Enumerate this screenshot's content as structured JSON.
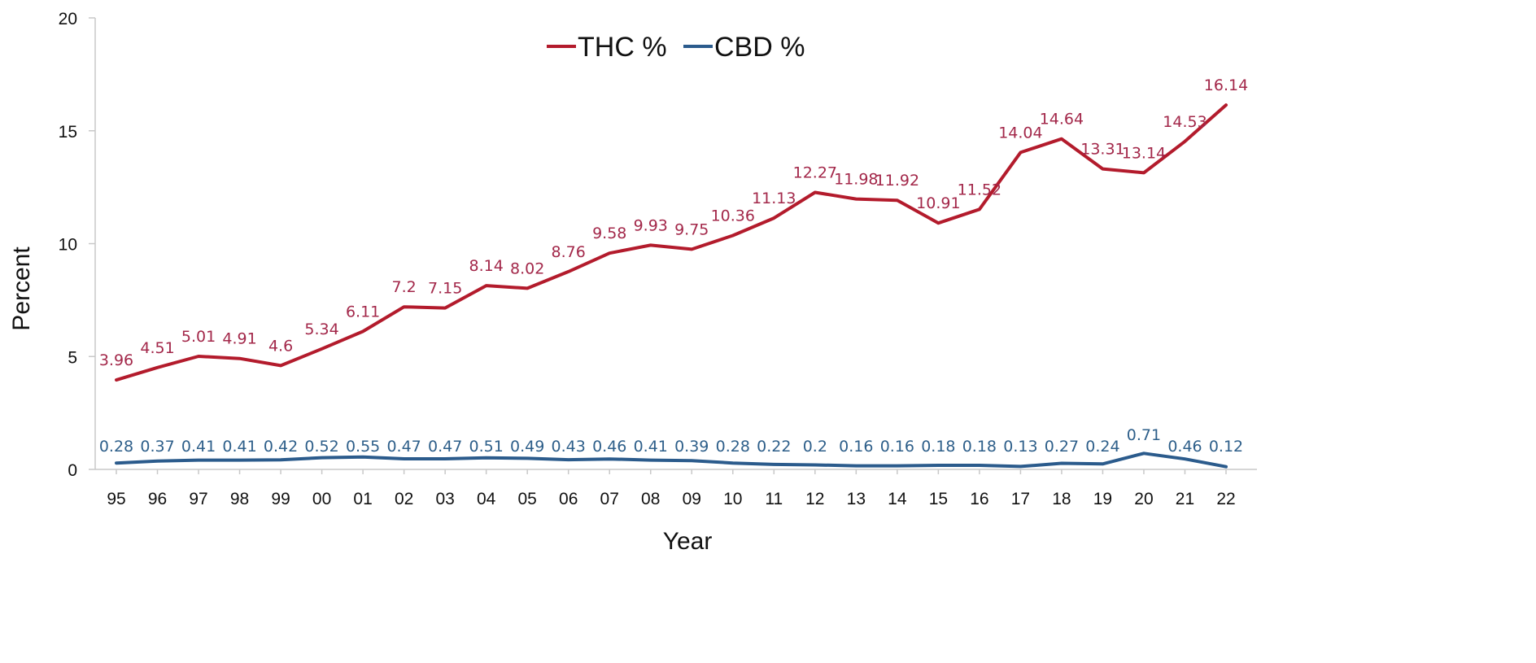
{
  "chart_data": {
    "type": "line",
    "xlabel": "Year",
    "ylabel": "Percent",
    "ylim": [
      0,
      20
    ],
    "yticks": [
      "0",
      "5",
      "10",
      "15",
      "20"
    ],
    "categories": [
      "95",
      "96",
      "97",
      "98",
      "99",
      "00",
      "01",
      "02",
      "03",
      "04",
      "05",
      "06",
      "07",
      "08",
      "09",
      "10",
      "11",
      "12",
      "13",
      "14",
      "15",
      "16",
      "17",
      "18",
      "19",
      "20",
      "21",
      "22"
    ],
    "legend_position": "top-center",
    "grid": false,
    "series": [
      {
        "name": "THC %",
        "color": "#b31b2c",
        "label_color": "#a3284a",
        "values": [
          3.96,
          4.51,
          5.01,
          4.91,
          4.6,
          5.34,
          6.11,
          7.2,
          7.15,
          8.14,
          8.02,
          8.76,
          9.58,
          9.93,
          9.75,
          10.36,
          11.13,
          12.27,
          11.98,
          11.92,
          10.91,
          11.52,
          14.04,
          14.64,
          13.31,
          13.14,
          14.53,
          16.14
        ]
      },
      {
        "name": "CBD %",
        "color": "#2b5b8c",
        "label_color": "#2e5f8a",
        "values": [
          0.28,
          0.37,
          0.41,
          0.41,
          0.42,
          0.52,
          0.55,
          0.47,
          0.47,
          0.51,
          0.49,
          0.43,
          0.46,
          0.41,
          0.39,
          0.28,
          0.22,
          0.2,
          0.16,
          0.16,
          0.18,
          0.18,
          0.13,
          0.27,
          0.24,
          0.71,
          0.46,
          0.12
        ]
      }
    ]
  }
}
